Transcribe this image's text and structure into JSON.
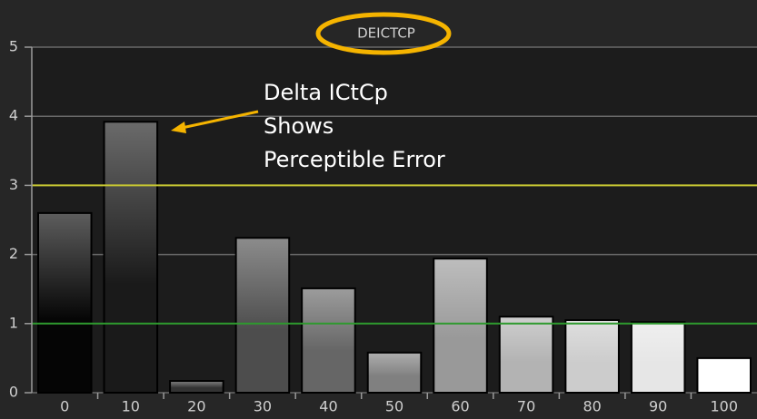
{
  "chart_data": {
    "type": "bar",
    "title": "DEICTCP",
    "categories": [
      "0",
      "10",
      "20",
      "30",
      "40",
      "50",
      "60",
      "70",
      "80",
      "90",
      "100"
    ],
    "values": [
      2.6,
      3.92,
      0.17,
      2.24,
      1.51,
      0.58,
      1.94,
      1.1,
      1.05,
      1.02,
      0.5
    ],
    "colors": [
      "#050505",
      "#1a1a1a",
      "#333333",
      "#4d4d4d",
      "#666666",
      "#808080",
      "#999999",
      "#b3b3b3",
      "#cccccc",
      "#e6e6e6",
      "#ffffff"
    ],
    "ylim": [
      0,
      5
    ],
    "yticks": [
      0,
      1,
      2,
      3,
      4,
      5
    ],
    "grid": true,
    "reference_lines": [
      {
        "value": 3,
        "color": "#c8c832"
      },
      {
        "value": 1,
        "color": "#2e9a2e"
      }
    ],
    "annotation": [
      "Delta ICtCp",
      "Shows",
      "Perceptible Error"
    ]
  }
}
